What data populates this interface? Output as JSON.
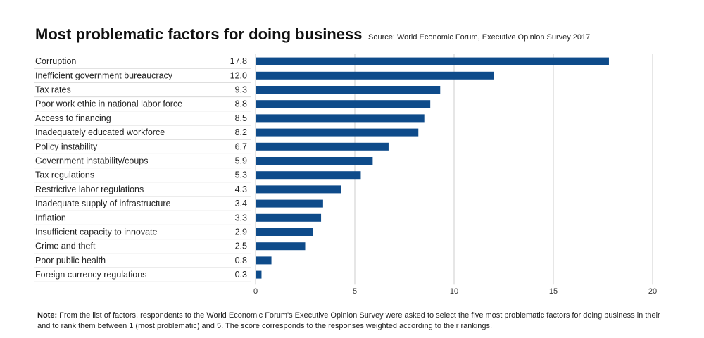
{
  "title": "Most problematic factors for doing business",
  "source": "Source: World Economic Forum, Executive Opinion Survey 2017",
  "note": {
    "label": "Note:",
    "line1": "From the list of factors, respondents to the World Economic Forum's Executive Opinion Survey were asked to select the five most problematic factors for doing business in their",
    "line2": "and to rank them between 1 (most problematic) and 5. The score corresponds to the responses weighted according to their rankings."
  },
  "colors": {
    "bar": "#0e4b8a",
    "grid": "#cccccc",
    "separator": "#d9d9d9"
  },
  "chart_data": {
    "type": "bar",
    "orientation": "horizontal",
    "categories": [
      "Corruption",
      "Inefficient government bureaucracy",
      "Tax rates",
      "Poor work ethic in national labor force",
      "Access to financing",
      "Inadequately educated workforce",
      "Policy instability",
      "Government instability/coups",
      "Tax regulations",
      "Restrictive labor regulations",
      "Inadequate supply of infrastructure",
      "Inflation",
      "Insufficient capacity to innovate",
      "Crime and theft",
      "Poor public health",
      "Foreign currency regulations"
    ],
    "values": [
      17.8,
      12.0,
      9.3,
      8.8,
      8.5,
      8.2,
      6.7,
      5.9,
      5.3,
      4.3,
      3.4,
      3.3,
      2.9,
      2.5,
      0.8,
      0.3
    ],
    "value_labels": [
      "17.8",
      "12.0",
      "9.3",
      "8.8",
      "8.5",
      "8.2",
      "6.7",
      "5.9",
      "5.3",
      "4.3",
      "3.4",
      "3.3",
      "2.9",
      "2.5",
      "0.8",
      "0.3"
    ],
    "xlim": [
      0,
      20
    ],
    "xticks": [
      0,
      5,
      10,
      15,
      20
    ],
    "xtick_labels": [
      "0",
      "5",
      "10",
      "15",
      "20"
    ],
    "grid": true
  }
}
